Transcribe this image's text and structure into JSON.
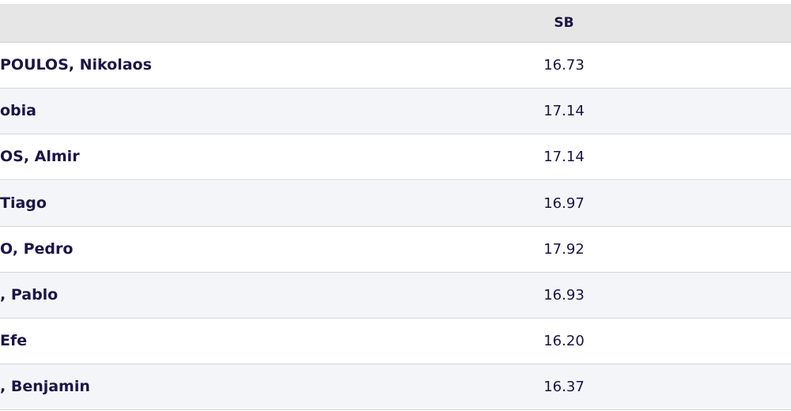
{
  "table": {
    "header": [
      "SB"
    ],
    "rows": [
      [
        "POULOS, Nikolaos",
        "16.73"
      ],
      [
        "obia",
        "17.14"
      ],
      [
        "OS, Almir",
        "17.14"
      ],
      [
        "Tiago",
        "16.97"
      ],
      [
        "O, Pedro",
        "17.92"
      ],
      [
        ", Pablo",
        "16.93"
      ],
      [
        "Efe",
        "16.20"
      ],
      [
        ", Benjamin",
        "16.37"
      ]
    ]
  }
}
